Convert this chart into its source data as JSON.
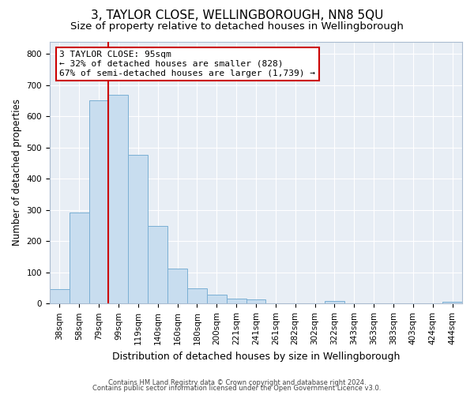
{
  "title": "3, TAYLOR CLOSE, WELLINGBOROUGH, NN8 5QU",
  "subtitle": "Size of property relative to detached houses in Wellingborough",
  "xlabel": "Distribution of detached houses by size in Wellingborough",
  "ylabel": "Number of detached properties",
  "bin_labels": [
    "38sqm",
    "58sqm",
    "79sqm",
    "99sqm",
    "119sqm",
    "140sqm",
    "160sqm",
    "180sqm",
    "200sqm",
    "221sqm",
    "241sqm",
    "261sqm",
    "282sqm",
    "302sqm",
    "322sqm",
    "343sqm",
    "363sqm",
    "383sqm",
    "403sqm",
    "424sqm",
    "444sqm"
  ],
  "bar_values": [
    47,
    293,
    651,
    668,
    477,
    250,
    113,
    48,
    28,
    15,
    14,
    0,
    0,
    0,
    8,
    0,
    0,
    0,
    0,
    0,
    6
  ],
  "bar_color": "#c8ddef",
  "bar_edge_color": "#7aafd4",
  "vline_x_index": 3,
  "vline_color": "#cc0000",
  "annotation_line1": "3 TAYLOR CLOSE: 95sqm",
  "annotation_line2": "← 32% of detached houses are smaller (828)",
  "annotation_line3": "67% of semi-detached houses are larger (1,739) →",
  "annotation_box_color": "#ffffff",
  "annotation_box_edge": "#cc0000",
  "ylim": [
    0,
    840
  ],
  "yticks": [
    0,
    100,
    200,
    300,
    400,
    500,
    600,
    700,
    800
  ],
  "footer_line1": "Contains HM Land Registry data © Crown copyright and database right 2024.",
  "footer_line2": "Contains public sector information licensed under the Open Government Licence v3.0.",
  "bg_color": "#ffffff",
  "plot_bg_color": "#e8eef5",
  "grid_color": "#ffffff",
  "title_fontsize": 11,
  "subtitle_fontsize": 9.5,
  "xlabel_fontsize": 9,
  "ylabel_fontsize": 8.5,
  "tick_fontsize": 7.5,
  "annotation_fontsize": 8,
  "footer_fontsize": 6
}
